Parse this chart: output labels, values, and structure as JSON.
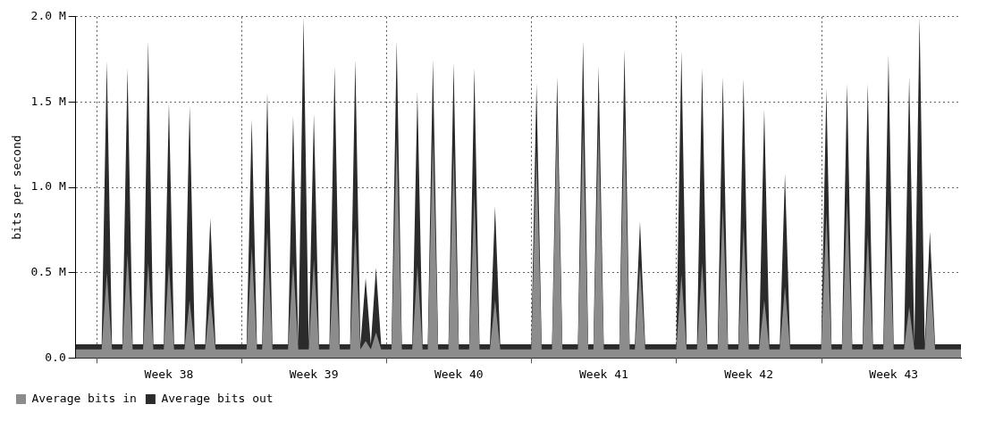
{
  "chart_data": {
    "type": "area",
    "ylabel": "bits per second",
    "legend": "bottom left",
    "grid": true,
    "categories": [
      null,
      null,
      null,
      null,
      null,
      null,
      null,
      null,
      null,
      null,
      null,
      null,
      null,
      null,
      null,
      null,
      null,
      null,
      "Week 38",
      null,
      null,
      null,
      null,
      null,
      null,
      null,
      null,
      null,
      null,
      null,
      null,
      null,
      null,
      null,
      null,
      null,
      null,
      null,
      null,
      null,
      null,
      null,
      null,
      null,
      null,
      null,
      "Week 39",
      null,
      null,
      null,
      null,
      null,
      null,
      null,
      null,
      null,
      null,
      null,
      null,
      null,
      null,
      null,
      null,
      null,
      null,
      null,
      null,
      null,
      null,
      null,
      null,
      null,
      null,
      null,
      "Week 40",
      null,
      null,
      null,
      null,
      null,
      null,
      null,
      null,
      null,
      null,
      null,
      null,
      null,
      null,
      null,
      null,
      null,
      null,
      null,
      null,
      null,
      null,
      null,
      null,
      null,
      null,
      null,
      "Week 41",
      null,
      null,
      null,
      null,
      null,
      null,
      null,
      null,
      null,
      null,
      null,
      null,
      null,
      null,
      null,
      null,
      null,
      null,
      null,
      null,
      null,
      null,
      null,
      null,
      null,
      null,
      null,
      "Week 42",
      null,
      null,
      null,
      null,
      null,
      null,
      null,
      null,
      null,
      null,
      null,
      null,
      null,
      null,
      null,
      null,
      null,
      null,
      null,
      null,
      null,
      null,
      null,
      null,
      null,
      null,
      null,
      "Week 43",
      null,
      null,
      null,
      null,
      null,
      null,
      null,
      null,
      null,
      null,
      null,
      null,
      null
    ],
    "ylim": [
      0,
      2
    ],
    "yticks": [
      {
        "value": 0,
        "label": "0.0"
      },
      {
        "value": 0.5,
        "label": "0.5 M"
      },
      {
        "value": 1,
        "label": "1.0 M"
      },
      {
        "value": 1.5,
        "label": "1.5 M"
      },
      {
        "value": 2,
        "label": "2.0 M"
      }
    ],
    "series": [
      {
        "name": "Average bits in",
        "color": "#8c8c8c",
        "values": [
          0.05,
          0.05,
          0.05,
          0.05,
          0.05,
          0.05,
          0.5,
          0.05,
          0.05,
          0.05,
          0.61,
          0.05,
          0.05,
          0.05,
          0.56,
          0.05,
          0.05,
          0.05,
          0.55,
          0.05,
          0.05,
          0.05,
          0.34,
          0.05,
          0.05,
          0.05,
          0.36,
          0.05,
          0.05,
          0.05,
          0.05,
          0.05,
          0.05,
          0.05,
          0.65,
          0.05,
          0.05,
          0.74,
          0.05,
          0.05,
          0.05,
          0.05,
          0.56,
          0.05,
          0.05,
          0.05,
          0.58,
          0.05,
          0.05,
          0.05,
          0.67,
          0.05,
          0.05,
          0.05,
          0.76,
          0.05,
          0.1,
          0.05,
          0.15,
          0.05,
          0.05,
          0.05,
          1.29,
          0.05,
          0.05,
          0.05,
          0.54,
          0.05,
          0.05,
          1.3,
          0.05,
          0.05,
          0.05,
          1.21,
          0.05,
          0.05,
          0.05,
          0.96,
          0.05,
          0.05,
          0.05,
          0.34,
          0.05,
          0.05,
          0.05,
          0.05,
          0.05,
          0.05,
          0.05,
          1.2,
          0.05,
          0.05,
          0.05,
          1.4,
          0.05,
          0.05,
          0.05,
          0.05,
          1.37,
          0.05,
          0.05,
          1.36,
          0.05,
          0.05,
          0.05,
          0.05,
          1.41,
          0.05,
          0.05,
          0.54,
          0.05,
          0.05,
          0.05,
          0.05,
          0.05,
          0.05,
          0.05,
          0.49,
          0.05,
          0.05,
          0.05,
          0.56,
          0.05,
          0.05,
          0.05,
          0.89,
          0.05,
          0.05,
          0.05,
          0.77,
          0.05,
          0.05,
          0.05,
          0.34,
          0.05,
          0.05,
          0.05,
          0.42,
          0.05,
          0.05,
          0.05,
          0.05,
          0.05,
          0.05,
          0.05,
          0.85,
          0.05,
          0.05,
          0.05,
          0.92,
          0.05,
          0.05,
          0.05,
          0.72,
          0.05,
          0.05,
          0.05,
          0.91,
          0.05,
          0.05,
          0.05,
          0.3,
          0.05,
          0.05,
          0.05,
          0.53,
          0.05,
          0.05,
          0.05,
          0.05,
          0.05,
          0.05
        ]
      },
      {
        "name": "Average bits out",
        "color": "#2b2b2b",
        "values": [
          0.08,
          0.08,
          0.08,
          0.08,
          0.08,
          0.08,
          1.74,
          0.08,
          0.08,
          0.08,
          1.7,
          0.08,
          0.08,
          0.08,
          1.86,
          0.08,
          0.08,
          0.08,
          1.5,
          0.08,
          0.08,
          0.08,
          1.48,
          0.08,
          0.08,
          0.08,
          0.82,
          0.08,
          0.08,
          0.08,
          0.08,
          0.08,
          0.08,
          0.08,
          1.4,
          0.08,
          0.08,
          1.56,
          0.08,
          0.08,
          0.08,
          0.08,
          1.42,
          0.08,
          2,
          0.08,
          1.43,
          0.08,
          0.08,
          0.08,
          1.71,
          0.08,
          0.08,
          0.08,
          1.75,
          0.08,
          0.47,
          0.08,
          0.53,
          0.08,
          0.08,
          0.08,
          1.86,
          0.08,
          0.08,
          0.08,
          1.56,
          0.08,
          0.08,
          1.75,
          0.08,
          0.08,
          0.08,
          1.73,
          0.08,
          0.08,
          0.08,
          1.7,
          0.08,
          0.08,
          0.08,
          0.89,
          0.08,
          0.08,
          0.08,
          0.08,
          0.08,
          0.08,
          0.08,
          1.61,
          0.08,
          0.08,
          0.08,
          1.65,
          0.08,
          0.08,
          0.08,
          0.08,
          1.86,
          0.08,
          0.08,
          1.71,
          0.08,
          0.08,
          0.08,
          0.08,
          1.81,
          0.08,
          0.08,
          0.8,
          0.08,
          0.08,
          0.08,
          0.08,
          0.08,
          0.08,
          0.08,
          1.8,
          0.08,
          0.08,
          0.08,
          1.7,
          0.08,
          0.08,
          0.08,
          1.65,
          0.08,
          0.08,
          0.08,
          1.64,
          0.08,
          0.08,
          0.08,
          1.46,
          0.08,
          0.08,
          0.08,
          1.08,
          0.08,
          0.08,
          0.08,
          0.08,
          0.08,
          0.08,
          0.08,
          1.58,
          0.08,
          0.08,
          0.08,
          1.61,
          0.08,
          0.08,
          0.08,
          1.61,
          0.08,
          0.08,
          0.08,
          1.78,
          0.08,
          0.08,
          0.08,
          1.65,
          0.08,
          2,
          0.08,
          0.74,
          0.08,
          0.08,
          0.08,
          0.08,
          0.08,
          0.08
        ]
      }
    ]
  }
}
